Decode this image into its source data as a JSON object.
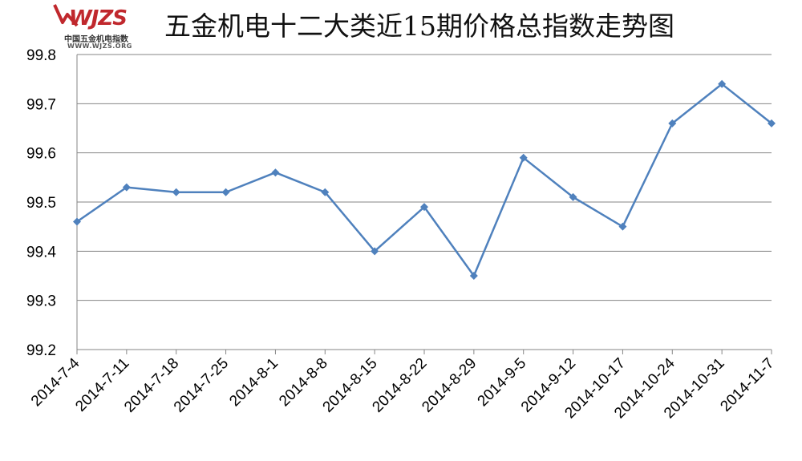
{
  "logo": {
    "mark": "WJZS",
    "cn": "中国五金机电指数",
    "url": "WWW.WJZS.ORG",
    "colors": {
      "mark": "#c0282d",
      "arrow": "#c0282d"
    }
  },
  "chart_data": {
    "type": "line",
    "title": "五金机电十二大类近15期价格总指数走势图",
    "categories": [
      "2014-7-4",
      "2014-7-11",
      "2014-7-18",
      "2014-7-25",
      "2014-8-1",
      "2014-8-8",
      "2014-8-15",
      "2014-8-22",
      "2014-8-29",
      "2014-9-5",
      "2014-9-12",
      "2014-10-17",
      "2014-10-24",
      "2014-10-31",
      "2014-11-7"
    ],
    "series": [
      {
        "values": [
          99.46,
          99.53,
          99.52,
          99.52,
          99.56,
          99.52,
          99.4,
          99.49,
          99.35,
          99.59,
          99.51,
          99.45,
          99.66,
          99.74,
          99.66
        ]
      }
    ],
    "ylim": [
      99.2,
      99.8
    ],
    "yticks": [
      "99.2",
      "99.3",
      "99.4",
      "99.5",
      "99.6",
      "99.7",
      "99.8"
    ],
    "grid": true,
    "colors": {
      "line": "#4f81bd",
      "marker": "#4f81bd",
      "grid": "#868686"
    }
  }
}
